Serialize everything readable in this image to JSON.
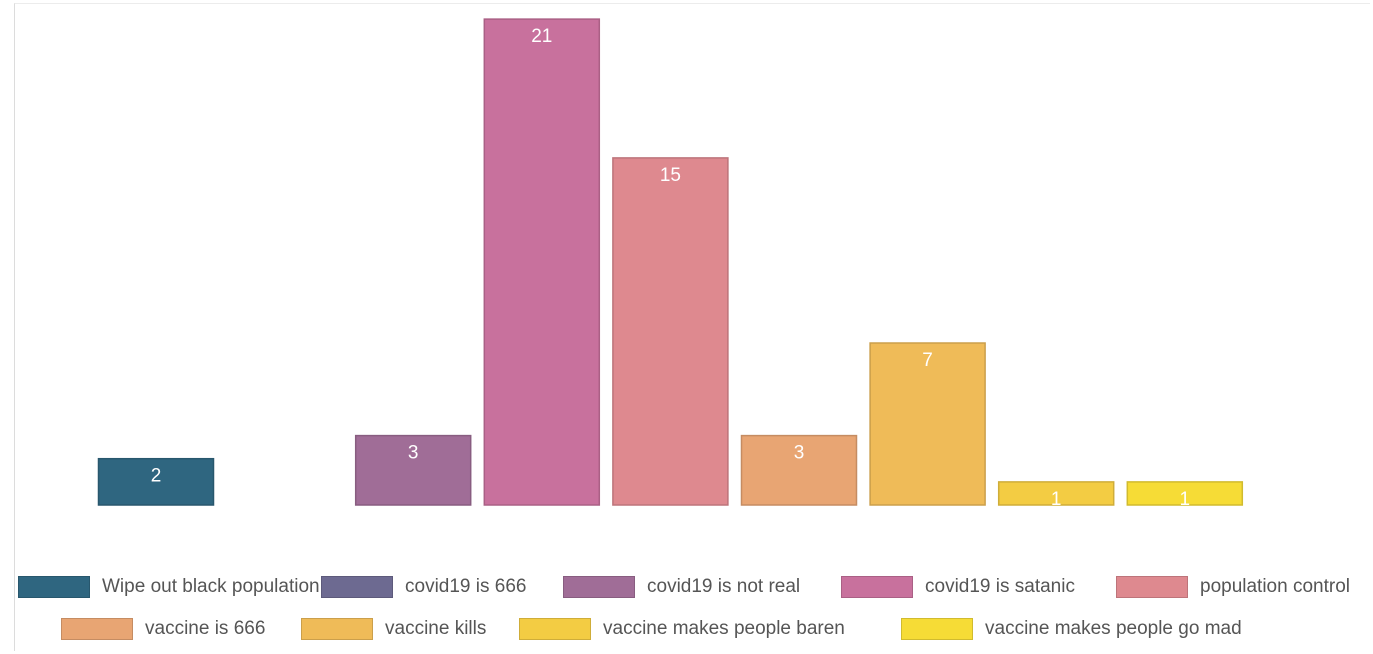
{
  "chart_data": {
    "type": "bar",
    "title": "",
    "xlabel": "",
    "ylabel": "",
    "grid": false,
    "legend_position": "bottom",
    "ylim": [
      0,
      22
    ],
    "series": [
      {
        "name": "Wipe out black population",
        "value": 2,
        "color": "#2f6680"
      },
      {
        "name": "covid19 is 666",
        "value": 0,
        "color": "#6d6a91"
      },
      {
        "name": "covid19 is not real",
        "value": 3,
        "color": "#a06d97"
      },
      {
        "name": "covid19 is satanic",
        "value": 21,
        "color": "#c8719d"
      },
      {
        "name": "population control",
        "value": 15,
        "color": "#de898f"
      },
      {
        "name": "vaccine is 666",
        "value": 3,
        "color": "#e8a573"
      },
      {
        "name": "vaccine kills",
        "value": 7,
        "color": "#efbb58"
      },
      {
        "name": "vaccine makes people baren",
        "value": 1,
        "color": "#f3cc43"
      },
      {
        "name": "vaccine makes people go mad",
        "value": 1,
        "color": "#f6dc36"
      }
    ],
    "data_labels": [
      "2",
      "",
      "3",
      "21",
      "15",
      "3",
      "7",
      "1",
      "1"
    ]
  }
}
